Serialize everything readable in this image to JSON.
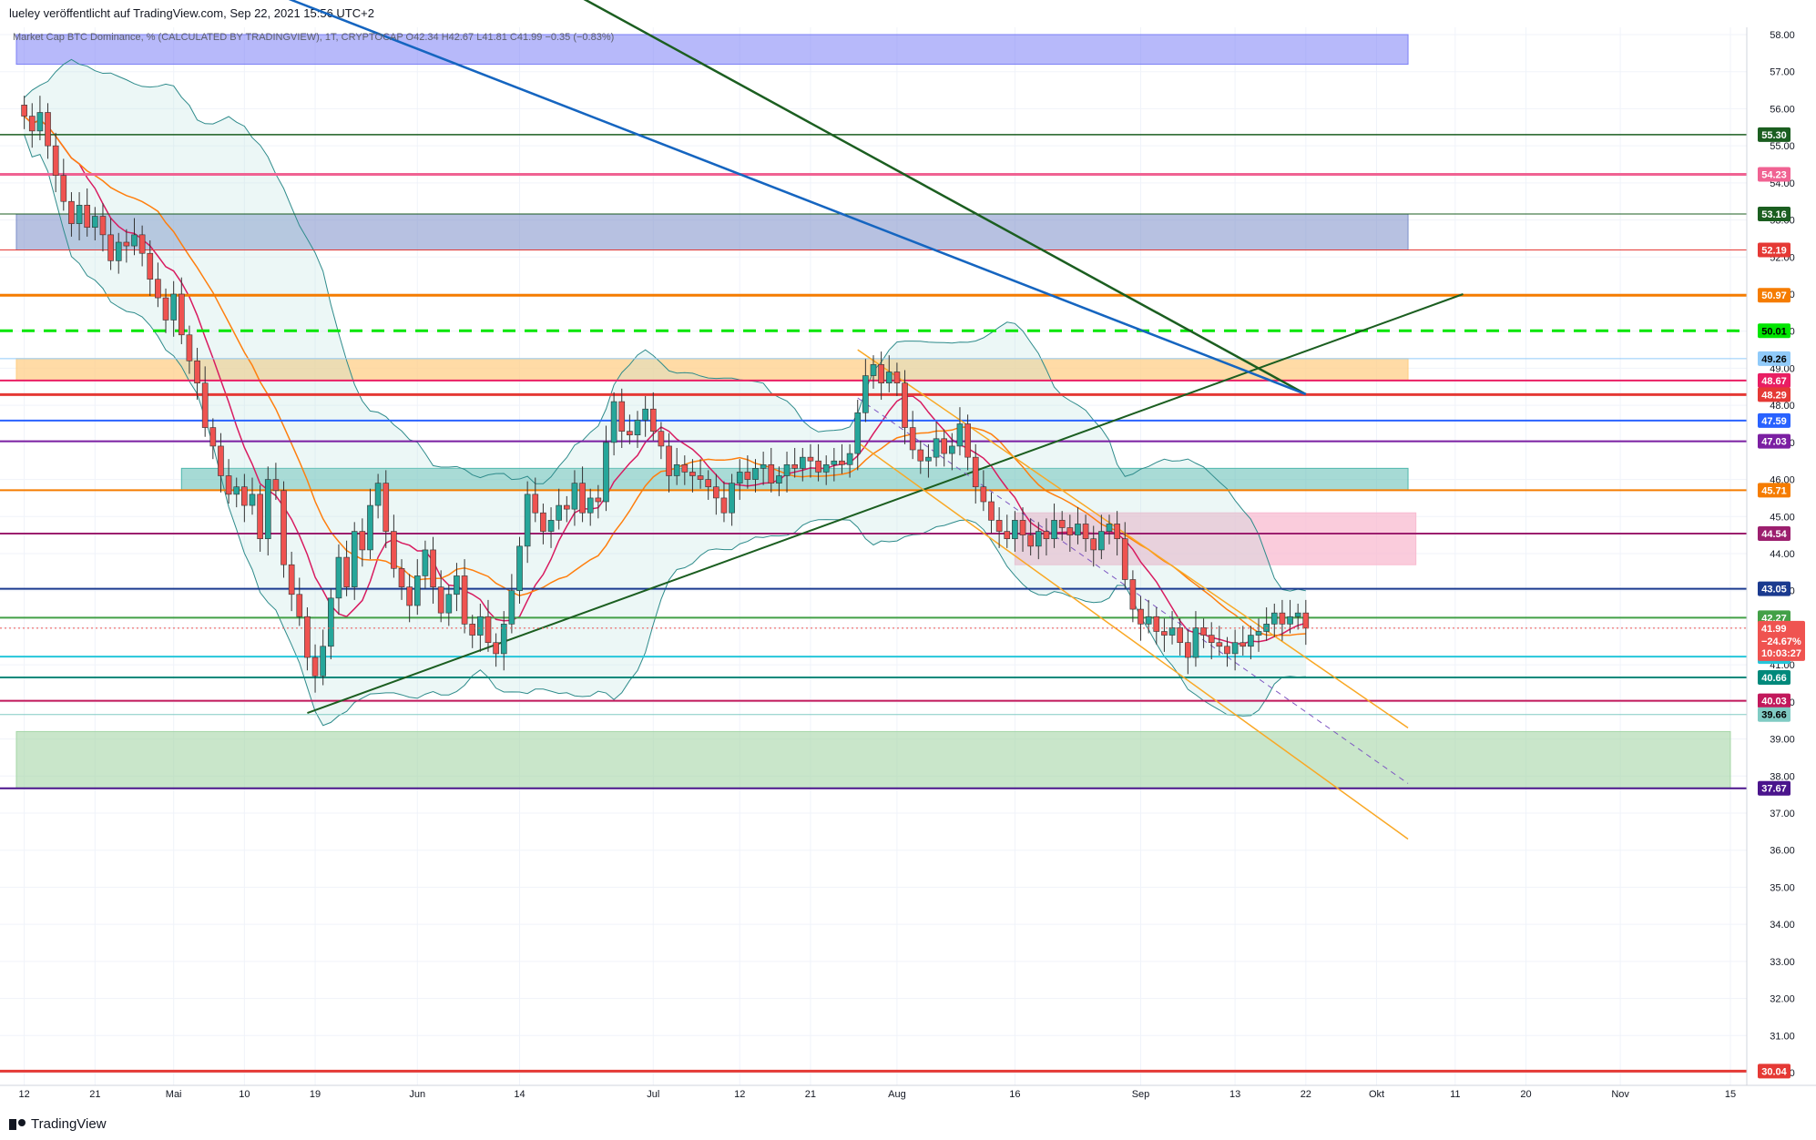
{
  "header": {
    "publisher": "lueley veröffentlicht auf TradingView.com, Sep 22, 2021 15:56 UTC+2"
  },
  "legend": {
    "text": "Market Cap BTC Dominance, % (CALCULATED BY TRADINGVIEW), 1T, CRYPTOCAP  O42.34  H42.67  L41.81  C41.99  −0.35 (−0.83%)"
  },
  "footer": {
    "brand": "TradingView"
  },
  "chart_data": {
    "type": "candlestick",
    "title": "",
    "symbol": "Market Cap BTC Dominance, % (CALCULATED BY TRADINGVIEW), 1T, CRYPTOCAP",
    "ohlc_last": {
      "open": 42.34,
      "high": 42.67,
      "low": 41.81,
      "close": 41.99,
      "change": -0.35,
      "change_pct": -0.83
    },
    "ylim": [
      30,
      58
    ],
    "y_ticks": [
      58,
      57,
      56,
      55,
      54,
      53,
      52,
      51,
      50,
      49,
      48,
      47,
      46,
      45,
      44,
      43,
      42,
      41,
      40,
      39,
      38,
      37,
      36,
      35,
      34,
      33,
      32,
      31,
      30
    ],
    "x_ticks": [
      {
        "label": "12",
        "day": 0
      },
      {
        "label": "21",
        "day": 9
      },
      {
        "label": "Mai",
        "day": 19
      },
      {
        "label": "10",
        "day": 28
      },
      {
        "label": "19",
        "day": 37
      },
      {
        "label": "Jun",
        "day": 50
      },
      {
        "label": "14",
        "day": 63
      },
      {
        "label": "Jul",
        "day": 80
      },
      {
        "label": "12",
        "day": 91
      },
      {
        "label": "21",
        "day": 100
      },
      {
        "label": "Aug",
        "day": 111
      },
      {
        "label": "16",
        "day": 126
      },
      {
        "label": "Sep",
        "day": 142
      },
      {
        "label": "13",
        "day": 154
      },
      {
        "label": "22",
        "day": 163
      },
      {
        "label": "Okt",
        "day": 172
      },
      {
        "label": "11",
        "day": 182
      },
      {
        "label": "20",
        "day": 191
      },
      {
        "label": "Nov",
        "day": 203
      },
      {
        "label": "15",
        "day": 217
      }
    ],
    "xlim": [
      -1,
      217
    ],
    "closes": [
      55.8,
      55.4,
      55.9,
      55.0,
      54.2,
      53.5,
      52.9,
      53.4,
      52.8,
      53.1,
      52.6,
      51.9,
      52.4,
      52.3,
      52.6,
      52.1,
      51.4,
      50.9,
      50.3,
      51.0,
      49.9,
      49.2,
      48.6,
      47.4,
      46.9,
      46.1,
      45.6,
      45.8,
      45.3,
      45.6,
      44.4,
      46.0,
      45.7,
      43.7,
      42.9,
      42.3,
      41.2,
      40.7,
      41.5,
      42.8,
      43.9,
      43.1,
      44.6,
      44.1,
      45.3,
      45.9,
      44.6,
      43.6,
      43.1,
      42.6,
      43.4,
      44.1,
      43.1,
      42.4,
      42.9,
      43.4,
      42.1,
      41.8,
      42.3,
      41.6,
      41.3,
      42.1,
      43.0,
      44.2,
      45.6,
      45.1,
      44.6,
      44.9,
      45.3,
      45.2,
      45.9,
      45.1,
      45.5,
      45.4,
      47.0,
      48.1,
      47.3,
      47.2,
      47.6,
      47.9,
      47.3,
      46.9,
      46.1,
      46.4,
      46.2,
      46.1,
      46.0,
      45.8,
      45.5,
      45.1,
      45.9,
      46.2,
      46.0,
      46.3,
      46.4,
      45.9,
      46.1,
      46.4,
      46.3,
      46.6,
      46.5,
      46.2,
      46.4,
      46.5,
      46.4,
      46.7,
      47.8,
      48.8,
      49.1,
      48.6,
      48.9,
      48.6,
      47.4,
      46.8,
      46.5,
      46.6,
      47.1,
      46.7,
      46.9,
      47.5,
      46.6,
      45.8,
      45.4,
      44.9,
      44.6,
      44.4,
      44.9,
      44.5,
      44.2,
      44.6,
      44.4,
      44.9,
      44.7,
      44.5,
      44.8,
      44.4,
      44.1,
      44.6,
      44.8,
      44.4,
      43.3,
      42.5,
      42.1,
      42.3,
      41.9,
      41.8,
      42.0,
      41.6,
      41.2,
      42.0,
      41.8,
      41.6,
      41.5,
      41.3,
      41.6,
      41.5,
      41.8,
      41.9,
      42.1,
      42.4,
      42.1,
      42.3,
      42.4,
      41.99
    ],
    "series": [
      {
        "name": "",
        "values": []
      }
    ],
    "horizontal_levels": [
      {
        "value": 55.3,
        "color": "#1b5e20",
        "label": "55.30",
        "width": 1.5,
        "dash": false
      },
      {
        "value": 54.23,
        "color": "#f06292",
        "label": "54.23",
        "width": 3,
        "dash": false
      },
      {
        "value": 53.16,
        "color": "#1b5e20",
        "label": "53.16",
        "width": 1,
        "dash": false
      },
      {
        "value": 52.19,
        "color": "#e53935",
        "label": "52.19",
        "width": 1,
        "dash": false
      },
      {
        "value": 50.97,
        "color": "#f57c00",
        "label": "50.97",
        "width": 3,
        "dash": false
      },
      {
        "value": 50.01,
        "color": "#00e600",
        "label": "50.01",
        "width": 3,
        "dash": true
      },
      {
        "value": 49.26,
        "color": "#90caf9",
        "label": "49.26",
        "width": 1,
        "dash": false
      },
      {
        "value": 48.67,
        "color": "#e91e63",
        "label": "48.67",
        "width": 2,
        "dash": false
      },
      {
        "value": 48.29,
        "color": "#e53935",
        "label": "48.29",
        "width": 3,
        "dash": false
      },
      {
        "value": 47.59,
        "color": "#2962ff",
        "label": "47.59",
        "width": 2,
        "dash": false
      },
      {
        "value": 47.03,
        "color": "#7b1fa2",
        "label": "47.03",
        "width": 2,
        "dash": false
      },
      {
        "value": 45.71,
        "color": "#f57c00",
        "label": "45.71",
        "width": 2,
        "dash": false
      },
      {
        "value": 44.54,
        "color": "#9c1f6e",
        "label": "44.54",
        "width": 2,
        "dash": false
      },
      {
        "value": 43.05,
        "color": "#1a3a8f",
        "label": "43.05",
        "width": 2,
        "dash": false
      },
      {
        "value": 42.27,
        "color": "#43a047",
        "label": "42.27",
        "width": 2,
        "dash": false
      },
      {
        "value": 41.22,
        "color": "#26c6da",
        "label": "41.22",
        "width": 2,
        "dash": false
      },
      {
        "value": 40.66,
        "color": "#00897b",
        "label": "40.66",
        "width": 2,
        "dash": false
      },
      {
        "value": 40.03,
        "color": "#c2185b",
        "label": "40.03",
        "width": 2,
        "dash": false
      },
      {
        "value": 39.66,
        "color": "#80cbc4",
        "label": "39.66",
        "width": 1,
        "dash": false
      },
      {
        "value": 37.67,
        "color": "#4a148c",
        "label": "37.67",
        "width": 2,
        "dash": false
      },
      {
        "value": 30.04,
        "color": "#e53935",
        "label": "30.04",
        "width": 3,
        "dash": false
      }
    ],
    "current_price": {
      "value": 41.99,
      "label": "41.99",
      "change": "−24.67%",
      "countdown": "10:03:27",
      "color": "#ef5350"
    },
    "zones": [
      {
        "name": "upper-blue-zone",
        "x0": -1,
        "x1": 176,
        "y0": 57.2,
        "y1": 58.0,
        "fill": "#7b7ff5",
        "opacity": 0.55
      },
      {
        "name": "mid-blue-zone",
        "x0": -1,
        "x1": 176,
        "y0": 52.19,
        "y1": 53.16,
        "fill": "#7b8ec8",
        "opacity": 0.55
      },
      {
        "name": "orange-zone",
        "x0": -1,
        "x1": 176,
        "y0": 48.67,
        "y1": 49.26,
        "fill": "#ffcc80",
        "opacity": 0.7
      },
      {
        "name": "teal-zone",
        "x0": 20,
        "x1": 176,
        "y0": 45.71,
        "y1": 46.3,
        "fill": "#4db6ac",
        "opacity": 0.5
      },
      {
        "name": "pink-zone",
        "x0": 126,
        "x1": 177,
        "y0": 43.7,
        "y1": 45.1,
        "fill": "#f8bbd0",
        "opacity": 0.75
      },
      {
        "name": "green-zone",
        "x0": -1,
        "x1": 217,
        "y0": 37.67,
        "y1": 39.2,
        "fill": "#a5d6a7",
        "opacity": 0.6
      }
    ],
    "trendlines": [
      {
        "name": "green-up-trendline",
        "x0": 36,
        "y0": 39.7,
        "x1": 183,
        "y1": 51.0,
        "color": "#1b5e20",
        "width": 2
      },
      {
        "name": "green-down-trendline",
        "x0": 45,
        "y0": 62.0,
        "x1": 163,
        "y1": 48.3,
        "color": "#1b5e20",
        "width": 2.5
      },
      {
        "name": "ema200-line",
        "x0": 15,
        "y0": 60.5,
        "x1": 163,
        "y1": 48.3,
        "color": "#1565c0",
        "width": 2.5
      },
      {
        "name": "channel-upper-line",
        "x0": 106,
        "y0": 49.5,
        "x1": 176,
        "y1": 39.3,
        "color": "#f9a825",
        "width": 1.5
      },
      {
        "name": "channel-lower-line",
        "x0": 106,
        "y0": 47.0,
        "x1": 176,
        "y1": 36.3,
        "color": "#f9a825",
        "width": 1.5
      },
      {
        "name": "channel-mid-line",
        "x0": 106,
        "y0": 48.2,
        "x1": 176,
        "y1": 37.8,
        "color": "#7e57c2",
        "width": 1,
        "dash": true
      }
    ]
  },
  "colors": {
    "up_candle": "#26a69a",
    "down_candle": "#ef5350",
    "bollinger": "#2e8b8b",
    "ema_orange": "#ff7f0e",
    "ema_red": "#d81b60"
  }
}
